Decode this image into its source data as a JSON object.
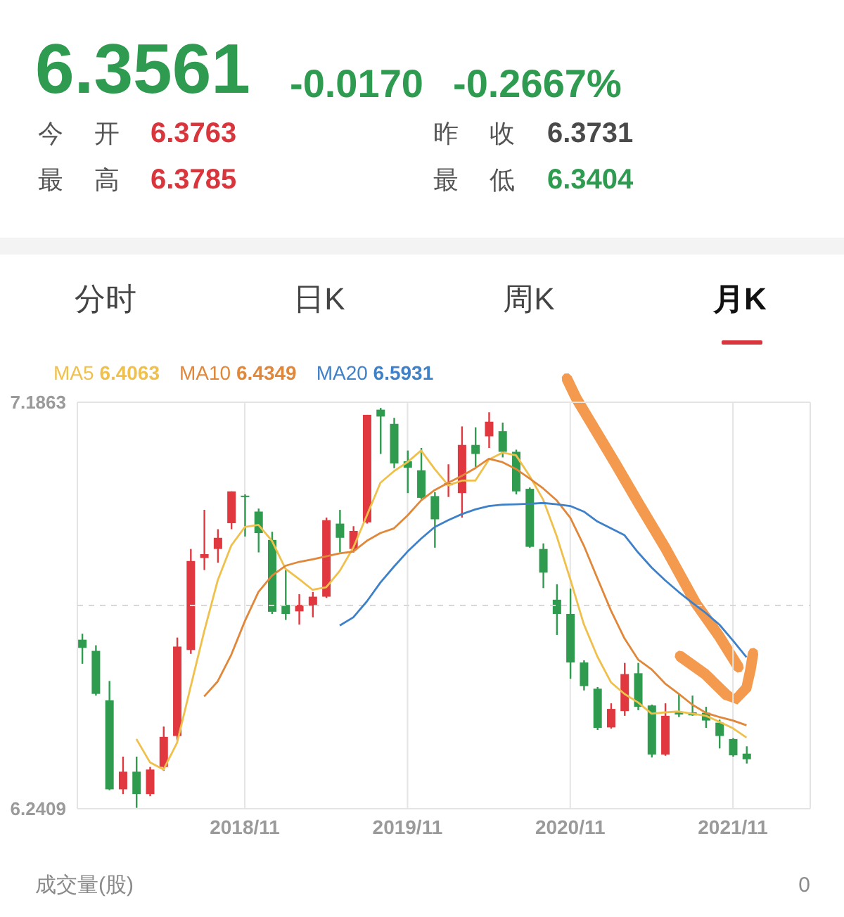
{
  "chart_data": {
    "type": "candlestick",
    "title": "6.3561",
    "annotations": [
      "-0.0170",
      "-0.2667%",
      "今开",
      "6.3763",
      "昨收",
      "6.3731",
      "最高",
      "6.3785",
      "最低",
      "6.3404",
      "分时",
      "日K",
      "周K",
      "月K",
      "成交量(股)",
      "0"
    ],
    "categories": [
      null,
      null,
      null,
      null,
      null,
      null,
      null,
      null,
      null,
      null,
      null,
      null,
      "2018/11",
      null,
      null,
      null,
      null,
      null,
      null,
      null,
      null,
      null,
      null,
      null,
      "2019/11",
      null,
      null,
      null,
      null,
      null,
      null,
      null,
      null,
      null,
      null,
      null,
      "2020/11",
      null,
      null,
      null,
      null,
      null,
      null,
      null,
      null,
      null,
      null,
      null,
      "2021/11",
      null
    ],
    "ohlc": [
      [
        6.634,
        6.648,
        6.578,
        6.615
      ],
      [
        6.608,
        6.621,
        6.504,
        6.508
      ],
      [
        6.493,
        6.538,
        6.284,
        6.286
      ],
      [
        6.286,
        6.362,
        6.275,
        6.327
      ],
      [
        6.327,
        6.362,
        6.243,
        6.275
      ],
      [
        6.275,
        6.338,
        6.27,
        6.332
      ],
      [
        6.338,
        6.432,
        6.329,
        6.408
      ],
      [
        6.41,
        6.639,
        6.4,
        6.618
      ],
      [
        6.61,
        6.845,
        6.601,
        6.817
      ],
      [
        6.824,
        6.936,
        6.796,
        6.833
      ],
      [
        6.845,
        6.891,
        6.813,
        6.871
      ],
      [
        6.905,
        6.979,
        6.891,
        6.979
      ],
      [
        6.969,
        6.972,
        6.874,
        6.966
      ],
      [
        6.932,
        6.939,
        6.837,
        6.882
      ],
      [
        6.866,
        6.885,
        6.694,
        6.699
      ],
      [
        6.715,
        6.796,
        6.68,
        6.694
      ],
      [
        6.7,
        6.74,
        6.669,
        6.715
      ],
      [
        6.713,
        6.745,
        6.686,
        6.734
      ],
      [
        6.734,
        6.918,
        6.731,
        6.912
      ],
      [
        6.904,
        6.936,
        6.837,
        6.871
      ],
      [
        6.845,
        6.898,
        6.837,
        6.887
      ],
      [
        6.907,
        7.157,
        6.904,
        7.157
      ],
      [
        7.169,
        7.173,
        7.066,
        7.153
      ],
      [
        7.136,
        7.15,
        7.033,
        7.044
      ],
      [
        7.049,
        7.074,
        6.975,
        7.034
      ],
      [
        7.028,
        7.08,
        6.961,
        6.964
      ],
      [
        6.968,
        6.977,
        6.848,
        6.914
      ],
      [
        6.993,
        7.042,
        6.966,
        6.998
      ],
      [
        6.975,
        7.13,
        6.918,
        7.087
      ],
      [
        7.087,
        7.128,
        7.036,
        7.066
      ],
      [
        7.107,
        7.163,
        7.08,
        7.141
      ],
      [
        7.119,
        7.139,
        7.058,
        7.071
      ],
      [
        7.071,
        7.076,
        6.972,
        6.979
      ],
      [
        6.985,
        6.988,
        6.848,
        6.85
      ],
      [
        6.845,
        6.858,
        6.754,
        6.79
      ],
      [
        6.727,
        6.763,
        6.645,
        6.694
      ],
      [
        6.694,
        6.753,
        6.543,
        6.581
      ],
      [
        6.581,
        6.586,
        6.516,
        6.526
      ],
      [
        6.52,
        6.524,
        6.424,
        6.429
      ],
      [
        6.43,
        6.486,
        6.427,
        6.473
      ],
      [
        6.468,
        6.58,
        6.457,
        6.554
      ],
      [
        6.556,
        6.58,
        6.47,
        6.478
      ],
      [
        6.481,
        6.483,
        6.36,
        6.367
      ],
      [
        6.367,
        6.486,
        6.364,
        6.457
      ],
      [
        6.465,
        6.508,
        6.454,
        6.46
      ],
      [
        6.465,
        6.504,
        6.457,
        6.458
      ],
      [
        6.464,
        6.478,
        6.429,
        6.446
      ],
      [
        6.441,
        6.448,
        6.381,
        6.41
      ],
      [
        6.403,
        6.405,
        6.362,
        6.365
      ],
      [
        6.369,
        6.386,
        6.346,
        6.356
      ]
    ],
    "colors": [
      "#2f9b4f",
      "#2f9b4f",
      "#2f9b4f",
      "#e0383e",
      "#2f9b4f",
      "#e0383e",
      "#e0383e",
      "#e0383e",
      "#e0383e",
      "#e0383e",
      "#e0383e",
      "#e0383e",
      "#2f9b4f",
      "#2f9b4f",
      "#2f9b4f",
      "#2f9b4f",
      "#e0383e",
      "#e0383e",
      "#e0383e",
      "#2f9b4f",
      "#e0383e",
      "#e0383e",
      "#2f9b4f",
      "#2f9b4f",
      "#2f9b4f",
      "#2f9b4f",
      "#2f9b4f",
      "#e0383e",
      "#e0383e",
      "#2f9b4f",
      "#e0383e",
      "#2f9b4f",
      "#2f9b4f",
      "#2f9b4f",
      "#2f9b4f",
      "#2f9b4f",
      "#2f9b4f",
      "#2f9b4f",
      "#2f9b4f",
      "#e0383e",
      "#e0383e",
      "#2f9b4f",
      "#2f9b4f",
      "#e0383e",
      "#2f9b4f",
      "#2f9b4f",
      "#2f9b4f",
      "#2f9b4f",
      "#2f9b4f",
      "#2f9b4f"
    ],
    "series": [
      {
        "name": "MA5 6.4063",
        "type": "line",
        "color": "#f0c04c",
        "values": [
          null,
          null,
          null,
          null,
          6.403,
          6.349,
          6.332,
          6.394,
          6.524,
          6.653,
          6.772,
          6.853,
          6.896,
          6.901,
          6.864,
          6.799,
          6.775,
          6.75,
          6.756,
          6.794,
          6.848,
          6.923,
          6.999,
          7.026,
          7.047,
          7.074,
          7.031,
          6.993,
          7.004,
          7.004,
          7.053,
          7.069,
          7.063,
          7.015,
          6.96,
          6.875,
          6.775,
          6.67,
          6.595,
          6.535,
          6.508,
          6.488,
          6.462,
          6.465,
          6.467,
          6.462,
          6.457,
          6.443,
          6.428,
          6.4063
        ]
      },
      {
        "name": "MA10 6.4349",
        "type": "line",
        "color": "#e0873a",
        "values": [
          null,
          null,
          null,
          null,
          null,
          null,
          null,
          null,
          null,
          6.502,
          6.537,
          6.599,
          6.677,
          6.745,
          6.783,
          6.806,
          6.815,
          6.821,
          6.828,
          6.835,
          6.839,
          6.864,
          6.882,
          6.893,
          6.923,
          6.958,
          6.982,
          6.999,
          7.015,
          7.033,
          7.055,
          7.047,
          7.031,
          7.009,
          6.986,
          6.958,
          6.918,
          6.853,
          6.777,
          6.702,
          6.637,
          6.588,
          6.565,
          6.532,
          6.508,
          6.483,
          6.464,
          6.454,
          6.446,
          6.4349
        ]
      },
      {
        "name": "MA20 6.5931",
        "type": "line",
        "color": "#3f81c8",
        "values": [
          null,
          null,
          null,
          null,
          null,
          null,
          null,
          null,
          null,
          null,
          null,
          null,
          null,
          null,
          null,
          null,
          null,
          null,
          null,
          6.667,
          6.686,
          6.723,
          6.767,
          6.804,
          6.839,
          6.869,
          6.896,
          6.912,
          6.926,
          6.937,
          6.945,
          6.948,
          6.949,
          6.95,
          6.952,
          6.949,
          6.945,
          6.932,
          6.909,
          6.893,
          6.877,
          6.837,
          6.802,
          6.772,
          6.745,
          6.72,
          6.696,
          6.669,
          6.632,
          6.5931
        ]
      }
    ],
    "ylim": [
      6.2409,
      7.1863
    ],
    "yticks": [
      6.2409,
      7.1863
    ],
    "ref_lines": [
      {
        "axis": "y",
        "value": 6.7136,
        "color": "#d8d8d8",
        "line_style": "dashed"
      }
    ],
    "grid": true,
    "legend": "top left"
  }
}
